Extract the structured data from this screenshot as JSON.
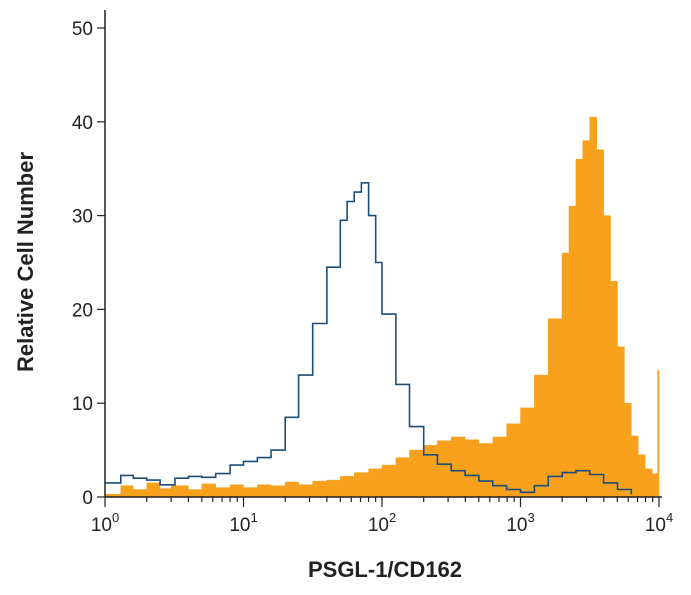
{
  "chart_data": {
    "type": "area",
    "xlabel": "PSGL-1/CD162",
    "ylabel": "Relative Cell Number",
    "x_scale": "log",
    "xlim": [
      1,
      10000
    ],
    "ylim": [
      0,
      50
    ],
    "y_ticks": [
      "0",
      "10",
      "20",
      "30",
      "40",
      "50"
    ],
    "x_ticks": [
      {
        "base": "10",
        "exp": "0",
        "value": 1
      },
      {
        "base": "10",
        "exp": "1",
        "value": 10
      },
      {
        "base": "10",
        "exp": "2",
        "value": 100
      },
      {
        "base": "10",
        "exp": "3",
        "value": 1000
      },
      {
        "base": "10",
        "exp": "4",
        "value": 10000
      }
    ],
    "grid": false,
    "series": [
      {
        "style": "filled",
        "color": "#f7a11c",
        "points": [
          [
            1,
            0.3
          ],
          [
            1.3,
            1.2
          ],
          [
            1.6,
            0.8
          ],
          [
            2,
            1.5
          ],
          [
            2.5,
            0.9
          ],
          [
            3,
            1.2
          ],
          [
            4,
            0.8
          ],
          [
            5,
            1.4
          ],
          [
            6.3,
            1.0
          ],
          [
            8,
            1.3
          ],
          [
            10,
            1.0
          ],
          [
            12.6,
            1.3
          ],
          [
            15.8,
            1.2
          ],
          [
            20,
            1.6
          ],
          [
            25,
            1.3
          ],
          [
            31.6,
            1.7
          ],
          [
            40,
            1.8
          ],
          [
            50,
            2.2
          ],
          [
            63,
            2.6
          ],
          [
            80,
            3.0
          ],
          [
            100,
            3.4
          ],
          [
            126,
            4.2
          ],
          [
            158,
            5.0
          ],
          [
            200,
            5.5
          ],
          [
            251,
            6.0
          ],
          [
            316,
            6.4
          ],
          [
            398,
            6.1
          ],
          [
            501,
            5.7
          ],
          [
            631,
            6.4
          ],
          [
            794,
            7.8
          ],
          [
            1000,
            9.5
          ],
          [
            1259,
            13
          ],
          [
            1585,
            19
          ],
          [
            1995,
            26
          ],
          [
            2239,
            31
          ],
          [
            2512,
            36
          ],
          [
            2818,
            38
          ],
          [
            3162,
            40.5
          ],
          [
            3548,
            37
          ],
          [
            3981,
            30
          ],
          [
            4467,
            23
          ],
          [
            5012,
            16
          ],
          [
            5623,
            10
          ],
          [
            6310,
            6.5
          ],
          [
            7079,
            4.5
          ],
          [
            7943,
            3
          ],
          [
            8913,
            2.5
          ],
          [
            9772,
            13.5
          ],
          [
            10000,
            0
          ]
        ]
      },
      {
        "style": "line",
        "color": "#1b4f7a",
        "points": [
          [
            1,
            1.5
          ],
          [
            1.3,
            2.3
          ],
          [
            1.6,
            2.0
          ],
          [
            2,
            1.8
          ],
          [
            2.5,
            1.3
          ],
          [
            3.2,
            2.0
          ],
          [
            4,
            2.2
          ],
          [
            5,
            2.1
          ],
          [
            6.3,
            2.5
          ],
          [
            8,
            3.4
          ],
          [
            10,
            3.8
          ],
          [
            12.6,
            4.2
          ],
          [
            15.8,
            5.0
          ],
          [
            20,
            8.5
          ],
          [
            25,
            13
          ],
          [
            31.6,
            18.5
          ],
          [
            40,
            24.5
          ],
          [
            50,
            29.5
          ],
          [
            56,
            31.5
          ],
          [
            63,
            32.5
          ],
          [
            71,
            33.5
          ],
          [
            80,
            30
          ],
          [
            90,
            25
          ],
          [
            100,
            19.5
          ],
          [
            126,
            12
          ],
          [
            158,
            7.5
          ],
          [
            200,
            4.5
          ],
          [
            251,
            3.5
          ],
          [
            316,
            2.8
          ],
          [
            398,
            2.3
          ],
          [
            501,
            1.7
          ],
          [
            631,
            1.2
          ],
          [
            794,
            0.8
          ],
          [
            1000,
            0.5
          ],
          [
            1259,
            1.2
          ],
          [
            1585,
            2.2
          ],
          [
            2000,
            2.6
          ],
          [
            2512,
            2.8
          ],
          [
            3162,
            2.4
          ],
          [
            3981,
            1.5
          ],
          [
            5012,
            0.8
          ],
          [
            6310,
            0.3
          ]
        ]
      }
    ]
  }
}
